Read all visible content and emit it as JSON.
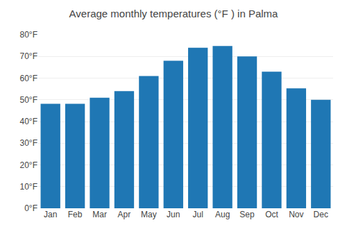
{
  "chart_data": {
    "type": "bar",
    "title": "Average monthly temperatures (°F ) in Palma",
    "categories": [
      "Jan",
      "Feb",
      "Mar",
      "Apr",
      "May",
      "Jun",
      "Jul",
      "Aug",
      "Sep",
      "Oct",
      "Nov",
      "Dec"
    ],
    "values": [
      48.2,
      48.2,
      51.0,
      54.0,
      61.0,
      68.0,
      74.0,
      74.8,
      70.0,
      63.0,
      55.3,
      50.0
    ],
    "ylim": [
      0,
      80
    ],
    "yticks": [
      {
        "value": 0,
        "label": "0°F"
      },
      {
        "value": 10,
        "label": "10°F"
      },
      {
        "value": 20,
        "label": "20°F"
      },
      {
        "value": 30,
        "label": "30°F"
      },
      {
        "value": 40,
        "label": "40°F"
      },
      {
        "value": 50,
        "label": "50°F"
      },
      {
        "value": 60,
        "label": "60°F"
      },
      {
        "value": 70,
        "label": "70°F"
      },
      {
        "value": 80,
        "label": "80°F"
      }
    ],
    "grid": true
  }
}
